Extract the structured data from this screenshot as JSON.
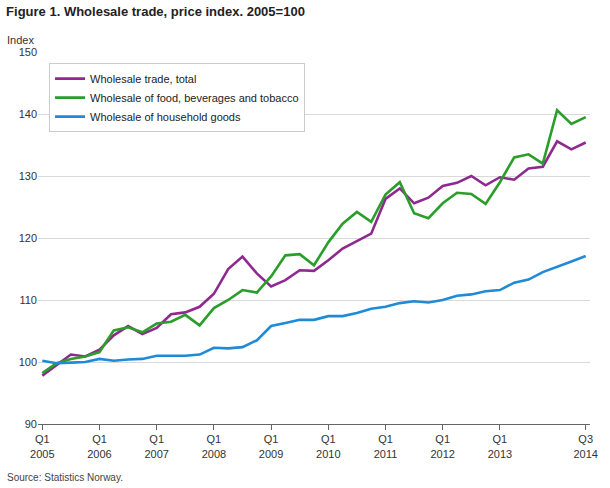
{
  "chart_data": {
    "type": "line",
    "title": "Figure 1. Wholesale trade, price index. 2005=100",
    "y_label": "Index",
    "source": "Source: Statistics Norway.",
    "categories": [
      "Q1 2005",
      null,
      null,
      null,
      "Q1 2006",
      null,
      null,
      null,
      "Q1 2007",
      null,
      null,
      null,
      "Q1 2008",
      null,
      null,
      null,
      "Q1 2009",
      null,
      null,
      null,
      "Q1 2010",
      null,
      null,
      null,
      "Q1 2011",
      null,
      null,
      null,
      "Q1 2012",
      null,
      null,
      null,
      "Q1 2013",
      null,
      null,
      null,
      null,
      null,
      "Q3 2014"
    ],
    "series": [
      {
        "name": "Wholesale trade, total",
        "color": "#8e2a8f",
        "values": [
          97.8,
          99.5,
          101.2,
          100.9,
          102.0,
          104.3,
          105.8,
          104.5,
          105.5,
          107.7,
          108.0,
          108.9,
          111.0,
          115.0,
          117.0,
          114.3,
          112.2,
          113.2,
          114.8,
          114.7,
          116.4,
          118.3,
          119.5,
          120.7,
          126.3,
          128.0,
          125.6,
          126.5,
          128.4,
          128.9,
          130.0,
          128.5,
          129.8,
          129.4,
          131.2,
          131.5,
          135.6,
          134.3,
          135.4
        ]
      },
      {
        "name": "Wholesale of food, beverages and tobacco",
        "color": "#2a9d2a",
        "values": [
          98.2,
          99.8,
          100.5,
          100.9,
          101.6,
          105.1,
          105.6,
          104.8,
          106.2,
          106.5,
          107.6,
          105.9,
          108.7,
          110.0,
          111.6,
          111.2,
          113.8,
          117.2,
          117.4,
          115.6,
          119.3,
          122.3,
          124.2,
          122.6,
          127.0,
          129.0,
          124.0,
          123.2,
          125.6,
          127.3,
          127.1,
          125.5,
          129.0,
          133.0,
          133.5,
          132.0,
          140.6,
          138.4,
          139.5
        ]
      },
      {
        "name": "Wholesale of household goods",
        "color": "#1f8ad6",
        "values": [
          100.2,
          99.8,
          99.9,
          100.0,
          100.5,
          100.2,
          100.4,
          100.5,
          101.0,
          101.0,
          101.0,
          101.2,
          102.3,
          102.2,
          102.4,
          103.5,
          105.8,
          106.3,
          106.8,
          106.8,
          107.4,
          107.4,
          107.9,
          108.6,
          108.9,
          109.5,
          109.8,
          109.6,
          110.0,
          110.7,
          110.9,
          111.4,
          111.6,
          112.8,
          113.3,
          114.5,
          115.3,
          116.2,
          117.1
        ]
      }
    ],
    "ylim": [
      90,
      150
    ],
    "yticks": [
      90,
      100,
      110,
      120,
      130,
      140,
      150
    ],
    "grid": true,
    "legend": "upper left"
  }
}
